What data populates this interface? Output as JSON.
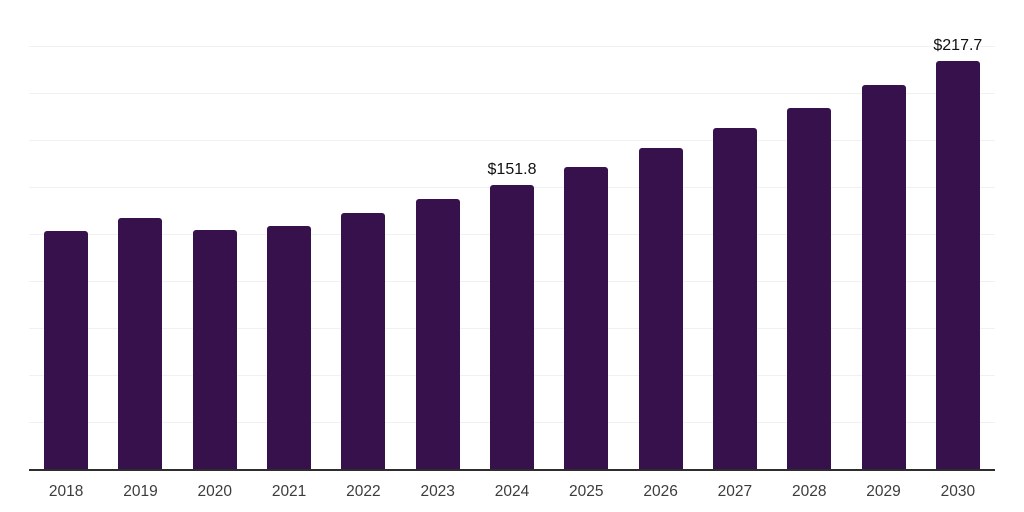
{
  "chart": {
    "background_color": "#FFFFFF",
    "bar_color": "#36114C",
    "gridline_color": "#F1F1F2",
    "axis_line_color": "#2D2D2D",
    "tick_label_color": "#3C3C3C",
    "data_label_color": "#111111"
  },
  "chart_data": {
    "type": "bar",
    "title": "",
    "xlabel": "",
    "ylabel": "",
    "categories": [
      "2018",
      "2019",
      "2020",
      "2021",
      "2022",
      "2023",
      "2024",
      "2025",
      "2026",
      "2027",
      "2028",
      "2029",
      "2030"
    ],
    "values": [
      127.1,
      133.8,
      127.7,
      130.0,
      136.7,
      144.2,
      151.8,
      161.1,
      171.3,
      182.1,
      192.5,
      204.6,
      217.7
    ],
    "data_labels": [
      "",
      "",
      "",
      "",
      "",
      "",
      "$151.8",
      "",
      "",
      "",
      "",
      "",
      "$217.7"
    ],
    "ylim": [
      0,
      250
    ],
    "gridline_step": 25,
    "grid": true,
    "y_axis_labels_visible": false,
    "legend_position": "none",
    "bar_color": "#36114C"
  }
}
